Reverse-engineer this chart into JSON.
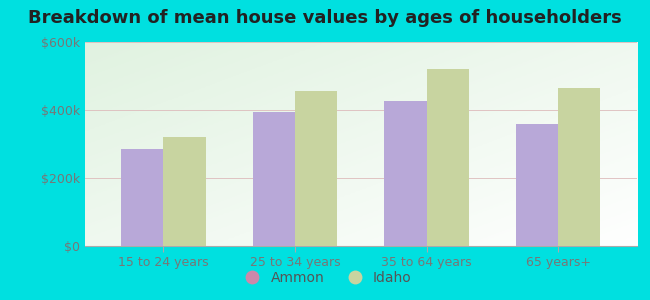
{
  "title": "Breakdown of mean house values by ages of householders",
  "categories": [
    "15 to 24 years",
    "25 to 34 years",
    "35 to 64 years",
    "65 years+"
  ],
  "ammon_values": [
    285000,
    395000,
    425000,
    360000
  ],
  "idaho_values": [
    320000,
    455000,
    520000,
    465000
  ],
  "ammon_color": "#b8a8d8",
  "idaho_color": "#c8d4a0",
  "background_outer": "#00e0e0",
  "ylim": [
    0,
    600000
  ],
  "yticks": [
    0,
    200000,
    400000,
    600000
  ],
  "ytick_labels": [
    "$0",
    "$200k",
    "$400k",
    "$600k"
  ],
  "legend_ammon": "Ammon",
  "legend_idaho": "Idaho",
  "ammon_dot_color": "#cc88aa",
  "idaho_dot_color": "#c8d4a0",
  "title_fontsize": 13,
  "bar_width": 0.32
}
